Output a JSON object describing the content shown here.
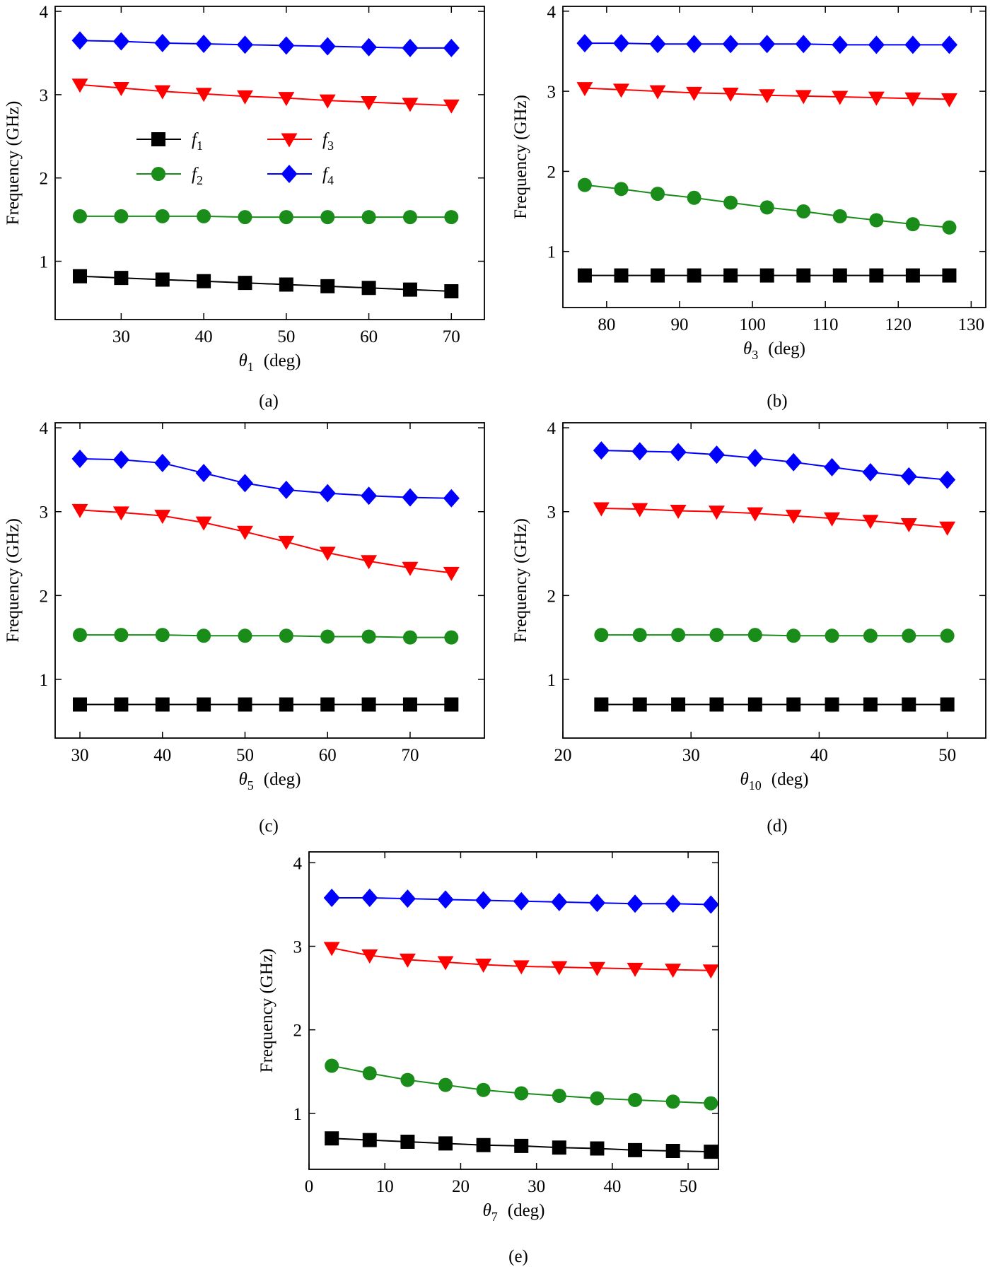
{
  "chart_data": [
    {
      "type": "line",
      "caption": "(a)",
      "y_label": "Frequency (GHz)",
      "x_label": {
        "symbol": "θ",
        "subscript": "1",
        "unit": "(deg)"
      },
      "x": [
        25,
        30,
        35,
        40,
        45,
        50,
        55,
        60,
        65,
        70
      ],
      "xlim": [
        22,
        74
      ],
      "xticks": [
        30,
        40,
        50,
        60,
        70
      ],
      "ylim": [
        0.3,
        4.06
      ],
      "yticks": [
        1,
        2,
        3,
        4
      ],
      "legend": true,
      "series": [
        {
          "name": "f1",
          "color": "#000000",
          "marker": "square",
          "values": [
            0.82,
            0.8,
            0.78,
            0.76,
            0.74,
            0.72,
            0.7,
            0.68,
            0.66,
            0.64
          ]
        },
        {
          "name": "f2",
          "color": "#1a8c1a",
          "marker": "circle",
          "values": [
            1.54,
            1.54,
            1.54,
            1.54,
            1.53,
            1.53,
            1.53,
            1.53,
            1.53,
            1.53
          ]
        },
        {
          "name": "f3",
          "color": "#ff0000",
          "marker": "triangle-down",
          "values": [
            3.12,
            3.08,
            3.04,
            3.01,
            2.98,
            2.96,
            2.93,
            2.91,
            2.89,
            2.87
          ]
        },
        {
          "name": "f4",
          "color": "#0000ff",
          "marker": "diamond",
          "values": [
            3.65,
            3.64,
            3.62,
            3.61,
            3.6,
            3.59,
            3.58,
            3.57,
            3.56,
            3.56
          ]
        }
      ]
    },
    {
      "type": "line",
      "caption": "(b)",
      "y_label": "Frequency (GHz)",
      "x_label": {
        "symbol": "θ",
        "subscript": "3",
        "unit": "(deg)"
      },
      "x": [
        77,
        82,
        87,
        92,
        97,
        102,
        107,
        112,
        117,
        122,
        127
      ],
      "xlim": [
        74,
        132
      ],
      "xticks": [
        80,
        90,
        100,
        110,
        120,
        130
      ],
      "ylim": [
        0.3,
        4.06
      ],
      "yticks": [
        1,
        2,
        3,
        4
      ],
      "legend": false,
      "series": [
        {
          "name": "f1",
          "color": "#000000",
          "marker": "square",
          "values": [
            0.7,
            0.7,
            0.7,
            0.7,
            0.7,
            0.7,
            0.7,
            0.7,
            0.7,
            0.7,
            0.7
          ]
        },
        {
          "name": "f2",
          "color": "#1a8c1a",
          "marker": "circle",
          "values": [
            1.83,
            1.78,
            1.72,
            1.67,
            1.61,
            1.55,
            1.5,
            1.44,
            1.39,
            1.34,
            1.3
          ]
        },
        {
          "name": "f3",
          "color": "#ff0000",
          "marker": "triangle-down",
          "values": [
            3.04,
            3.02,
            3.0,
            2.98,
            2.97,
            2.95,
            2.94,
            2.93,
            2.92,
            2.91,
            2.9
          ]
        },
        {
          "name": "f4",
          "color": "#0000ff",
          "marker": "diamond",
          "values": [
            3.6,
            3.6,
            3.59,
            3.59,
            3.59,
            3.59,
            3.59,
            3.58,
            3.58,
            3.58,
            3.58
          ]
        }
      ]
    },
    {
      "type": "line",
      "caption": "(c)",
      "y_label": "Frequency (GHz)",
      "x_label": {
        "symbol": "θ",
        "subscript": "5",
        "unit": "(deg)"
      },
      "x": [
        30,
        35,
        40,
        45,
        50,
        55,
        60,
        65,
        70,
        75
      ],
      "xlim": [
        27,
        79
      ],
      "xticks": [
        30,
        40,
        50,
        60,
        70
      ],
      "ylim": [
        0.3,
        4.06
      ],
      "yticks": [
        1,
        2,
        3,
        4
      ],
      "legend": false,
      "series": [
        {
          "name": "f1",
          "color": "#000000",
          "marker": "square",
          "values": [
            0.7,
            0.7,
            0.7,
            0.7,
            0.7,
            0.7,
            0.7,
            0.7,
            0.7,
            0.7
          ]
        },
        {
          "name": "f2",
          "color": "#1a8c1a",
          "marker": "circle",
          "values": [
            1.53,
            1.53,
            1.53,
            1.52,
            1.52,
            1.52,
            1.51,
            1.51,
            1.5,
            1.5
          ]
        },
        {
          "name": "f3",
          "color": "#ff0000",
          "marker": "triangle-down",
          "values": [
            3.02,
            2.99,
            2.95,
            2.87,
            2.76,
            2.64,
            2.51,
            2.41,
            2.33,
            2.27
          ]
        },
        {
          "name": "f4",
          "color": "#0000ff",
          "marker": "diamond",
          "values": [
            3.63,
            3.62,
            3.58,
            3.46,
            3.34,
            3.26,
            3.22,
            3.19,
            3.17,
            3.16
          ]
        }
      ]
    },
    {
      "type": "line",
      "caption": "(d)",
      "y_label": "Frequency (GHz)",
      "x_label": {
        "symbol": "θ",
        "subscript": "10",
        "unit": "(deg)"
      },
      "x": [
        23,
        26,
        29,
        32,
        35,
        38,
        41,
        44,
        47,
        50
      ],
      "xlim": [
        20,
        53
      ],
      "xticks": [
        20,
        30,
        40,
        50
      ],
      "ylim": [
        0.3,
        4.06
      ],
      "yticks": [
        1,
        2,
        3,
        4
      ],
      "legend": false,
      "series": [
        {
          "name": "f1",
          "color": "#000000",
          "marker": "square",
          "values": [
            0.7,
            0.7,
            0.7,
            0.7,
            0.7,
            0.7,
            0.7,
            0.7,
            0.7,
            0.7
          ]
        },
        {
          "name": "f2",
          "color": "#1a8c1a",
          "marker": "circle",
          "values": [
            1.53,
            1.53,
            1.53,
            1.53,
            1.53,
            1.52,
            1.52,
            1.52,
            1.52,
            1.52
          ]
        },
        {
          "name": "f3",
          "color": "#ff0000",
          "marker": "triangle-down",
          "values": [
            3.04,
            3.03,
            3.01,
            3.0,
            2.98,
            2.95,
            2.92,
            2.89,
            2.85,
            2.81
          ]
        },
        {
          "name": "f4",
          "color": "#0000ff",
          "marker": "diamond",
          "values": [
            3.73,
            3.72,
            3.71,
            3.68,
            3.64,
            3.59,
            3.53,
            3.47,
            3.42,
            3.38
          ]
        }
      ]
    },
    {
      "type": "line",
      "caption": "(e)",
      "y_label": "Frequency (GHz)",
      "x_label": {
        "symbol": "θ",
        "subscript": "7",
        "unit": "(deg)"
      },
      "x": [
        3,
        8,
        13,
        18,
        23,
        28,
        33,
        38,
        43,
        48,
        53
      ],
      "xlim": [
        0,
        54
      ],
      "xticks": [
        0,
        10,
        20,
        30,
        40,
        50
      ],
      "ylim": [
        0.33,
        4.13
      ],
      "yticks": [
        1,
        2,
        3,
        4
      ],
      "legend": false,
      "series": [
        {
          "name": "f1",
          "color": "#000000",
          "marker": "square",
          "values": [
            0.7,
            0.68,
            0.66,
            0.64,
            0.62,
            0.61,
            0.59,
            0.58,
            0.56,
            0.55,
            0.54
          ]
        },
        {
          "name": "f2",
          "color": "#1a8c1a",
          "marker": "circle",
          "values": [
            1.57,
            1.48,
            1.4,
            1.34,
            1.28,
            1.24,
            1.21,
            1.18,
            1.16,
            1.14,
            1.12
          ]
        },
        {
          "name": "f3",
          "color": "#ff0000",
          "marker": "triangle-down",
          "values": [
            2.98,
            2.89,
            2.84,
            2.81,
            2.78,
            2.76,
            2.75,
            2.74,
            2.73,
            2.72,
            2.71
          ]
        },
        {
          "name": "f4",
          "color": "#0000ff",
          "marker": "diamond",
          "values": [
            3.58,
            3.58,
            3.57,
            3.56,
            3.55,
            3.54,
            3.53,
            3.52,
            3.51,
            3.51,
            3.5
          ]
        }
      ]
    }
  ]
}
